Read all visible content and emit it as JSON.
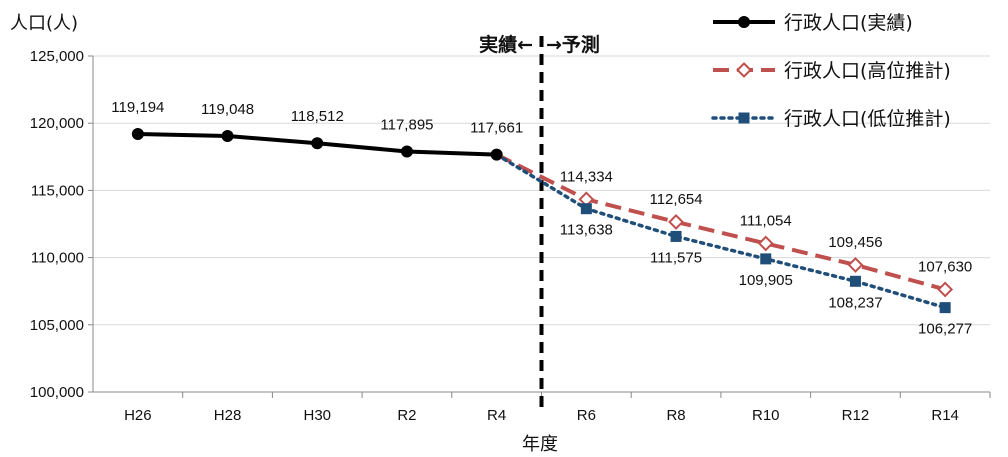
{
  "chart_data": {
    "type": "line",
    "ylabel": "人口(人)",
    "xlabel": "年度",
    "categories": [
      "H26",
      "H28",
      "H30",
      "R2",
      "R4",
      "R6",
      "R8",
      "R10",
      "R12",
      "R14"
    ],
    "ylim": [
      100000,
      125000
    ],
    "yticks": [
      "100,000",
      "105,000",
      "110,000",
      "115,000",
      "120,000",
      "125,000"
    ],
    "ytick_values": [
      100000,
      105000,
      110000,
      115000,
      120000,
      125000
    ],
    "divider_label_left": "実績←",
    "divider_label_right": "→予測",
    "legend_position": "top-right",
    "series": [
      {
        "name": "行政人口(実績)",
        "color": "#000000",
        "style": "solid",
        "marker": "circle",
        "values": [
          119194,
          119048,
          118512,
          117895,
          117661,
          null,
          null,
          null,
          null,
          null
        ],
        "labels": [
          "119,194",
          "119,048",
          "118,512",
          "117,895",
          "117,661",
          "",
          "",
          "",
          "",
          ""
        ]
      },
      {
        "name": "行政人口(高位推計)",
        "color": "#c0504d",
        "style": "dashed",
        "marker": "diamond-open",
        "values": [
          null,
          null,
          null,
          null,
          117661,
          114334,
          112654,
          111054,
          109456,
          107630
        ],
        "labels": [
          "",
          "",
          "",
          "",
          "",
          "114,334",
          "112,654",
          "111,054",
          "109,456",
          "107,630"
        ]
      },
      {
        "name": "行政人口(低位推計)",
        "color": "#1f4e79",
        "style": "dotted",
        "marker": "square",
        "values": [
          null,
          null,
          null,
          null,
          117661,
          113638,
          111575,
          109905,
          108237,
          106277
        ],
        "labels": [
          "",
          "",
          "",
          "",
          "",
          "113,638",
          "111,575",
          "109,905",
          "108,237",
          "106,277"
        ]
      }
    ]
  }
}
